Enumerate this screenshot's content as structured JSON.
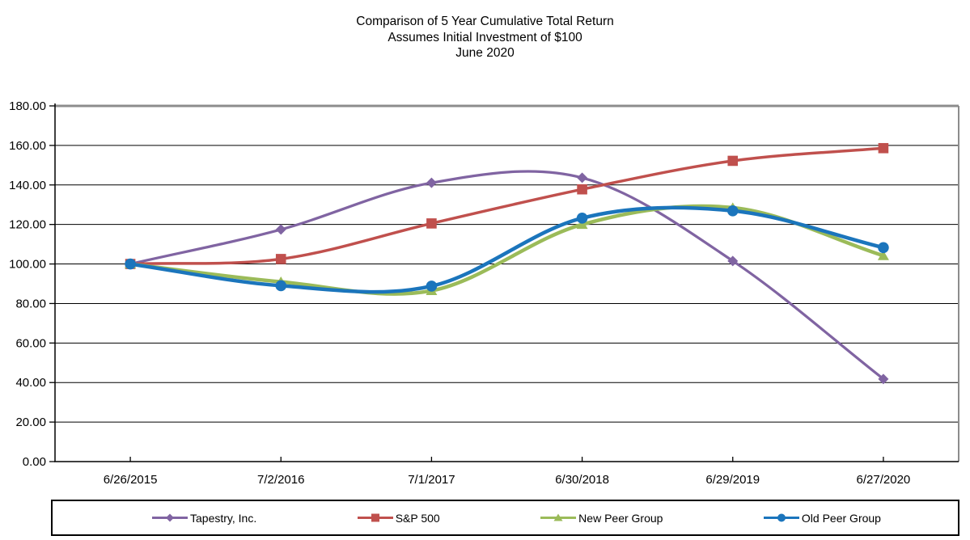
{
  "title": {
    "line1": "Comparison of 5 Year Cumulative Total Return",
    "line2": "Assumes Initial Investment of $100",
    "line3": "June 2020"
  },
  "chart_data": {
    "type": "line",
    "smoothed": true,
    "title": "Comparison of 5 Year Cumulative Total Return — Assumes Initial Investment of $100 — June 2020",
    "categories": [
      "6/26/2015",
      "7/2/2016",
      "7/1/2017",
      "6/30/2018",
      "6/29/2019",
      "6/27/2020"
    ],
    "series": [
      {
        "name": "Tapestry, Inc.",
        "color": "#8064A2",
        "marker": "diamond",
        "line_width": 3.25,
        "values": [
          100.0,
          117.47,
          141.07,
          143.65,
          101.53,
          41.79
        ]
      },
      {
        "name": "S&P 500",
        "color": "#C0504D",
        "marker": "square",
        "line_width": 3.5,
        "values": [
          100.0,
          102.51,
          120.52,
          137.78,
          152.2,
          158.62
        ]
      },
      {
        "name": "New Peer Group",
        "color": "#9BBB59",
        "marker": "triangle",
        "line_width": 4.5,
        "values": [
          100.0,
          91.0,
          86.5,
          120.0,
          128.5,
          104.2
        ]
      },
      {
        "name": "Old Peer Group",
        "color": "#1B75BC",
        "marker": "circle",
        "line_width": 4.5,
        "values": [
          100.0,
          89.0,
          88.8,
          123.2,
          126.9,
          108.3
        ]
      }
    ],
    "y_axis": {
      "min": 0,
      "max": 180,
      "step": 20,
      "tick_labels": [
        "0.00",
        "20.00",
        "40.00",
        "60.00",
        "80.00",
        "100.00",
        "120.00",
        "140.00",
        "160.00",
        "180.00"
      ]
    },
    "x_axis": {
      "tick_labels": [
        "6/26/2015",
        "7/2/2016",
        "7/1/2017",
        "6/30/2018",
        "6/29/2019",
        "6/27/2020"
      ]
    },
    "legend": {
      "position": "bottom",
      "entries": [
        "Tapestry, Inc.",
        "S&P 500",
        "New Peer Group",
        "Old Peer Group"
      ]
    },
    "grid": true
  },
  "colors": {
    "gridline": "#000000",
    "plot_border": "#8C8C8C",
    "axis": "#000000",
    "text": "#000000"
  }
}
